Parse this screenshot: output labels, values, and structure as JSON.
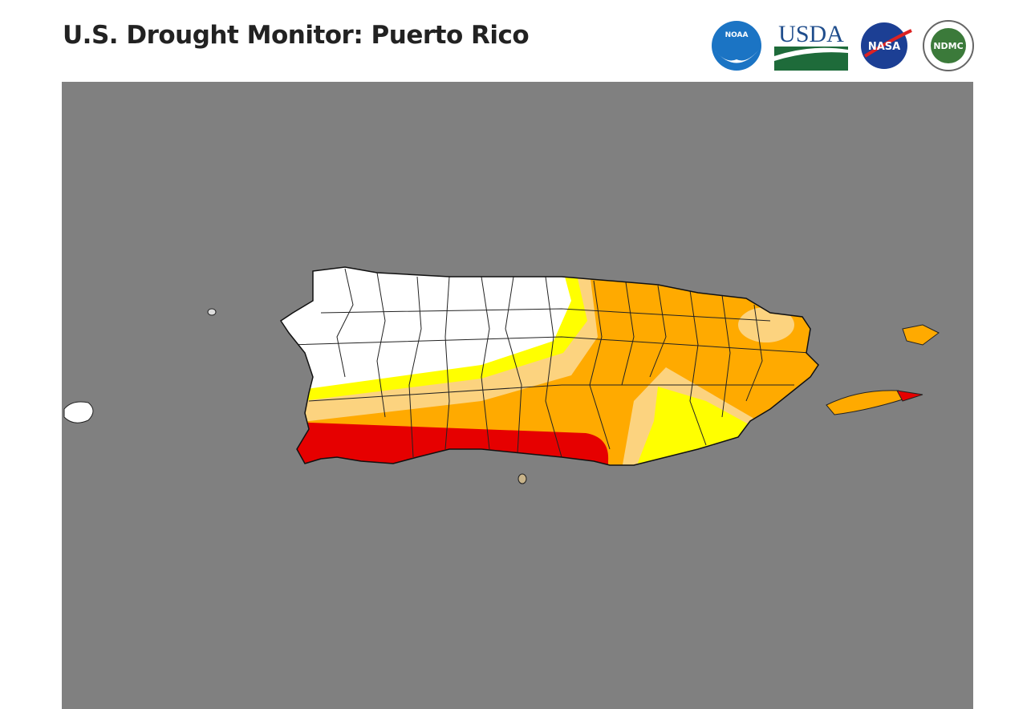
{
  "header": {
    "title": "U.S. Drought Monitor: Puerto Rico"
  },
  "logos": [
    {
      "label": "NOAA"
    },
    {
      "label": "USDA"
    },
    {
      "label": "NASA"
    },
    {
      "label": "NDMC"
    }
  ]
}
